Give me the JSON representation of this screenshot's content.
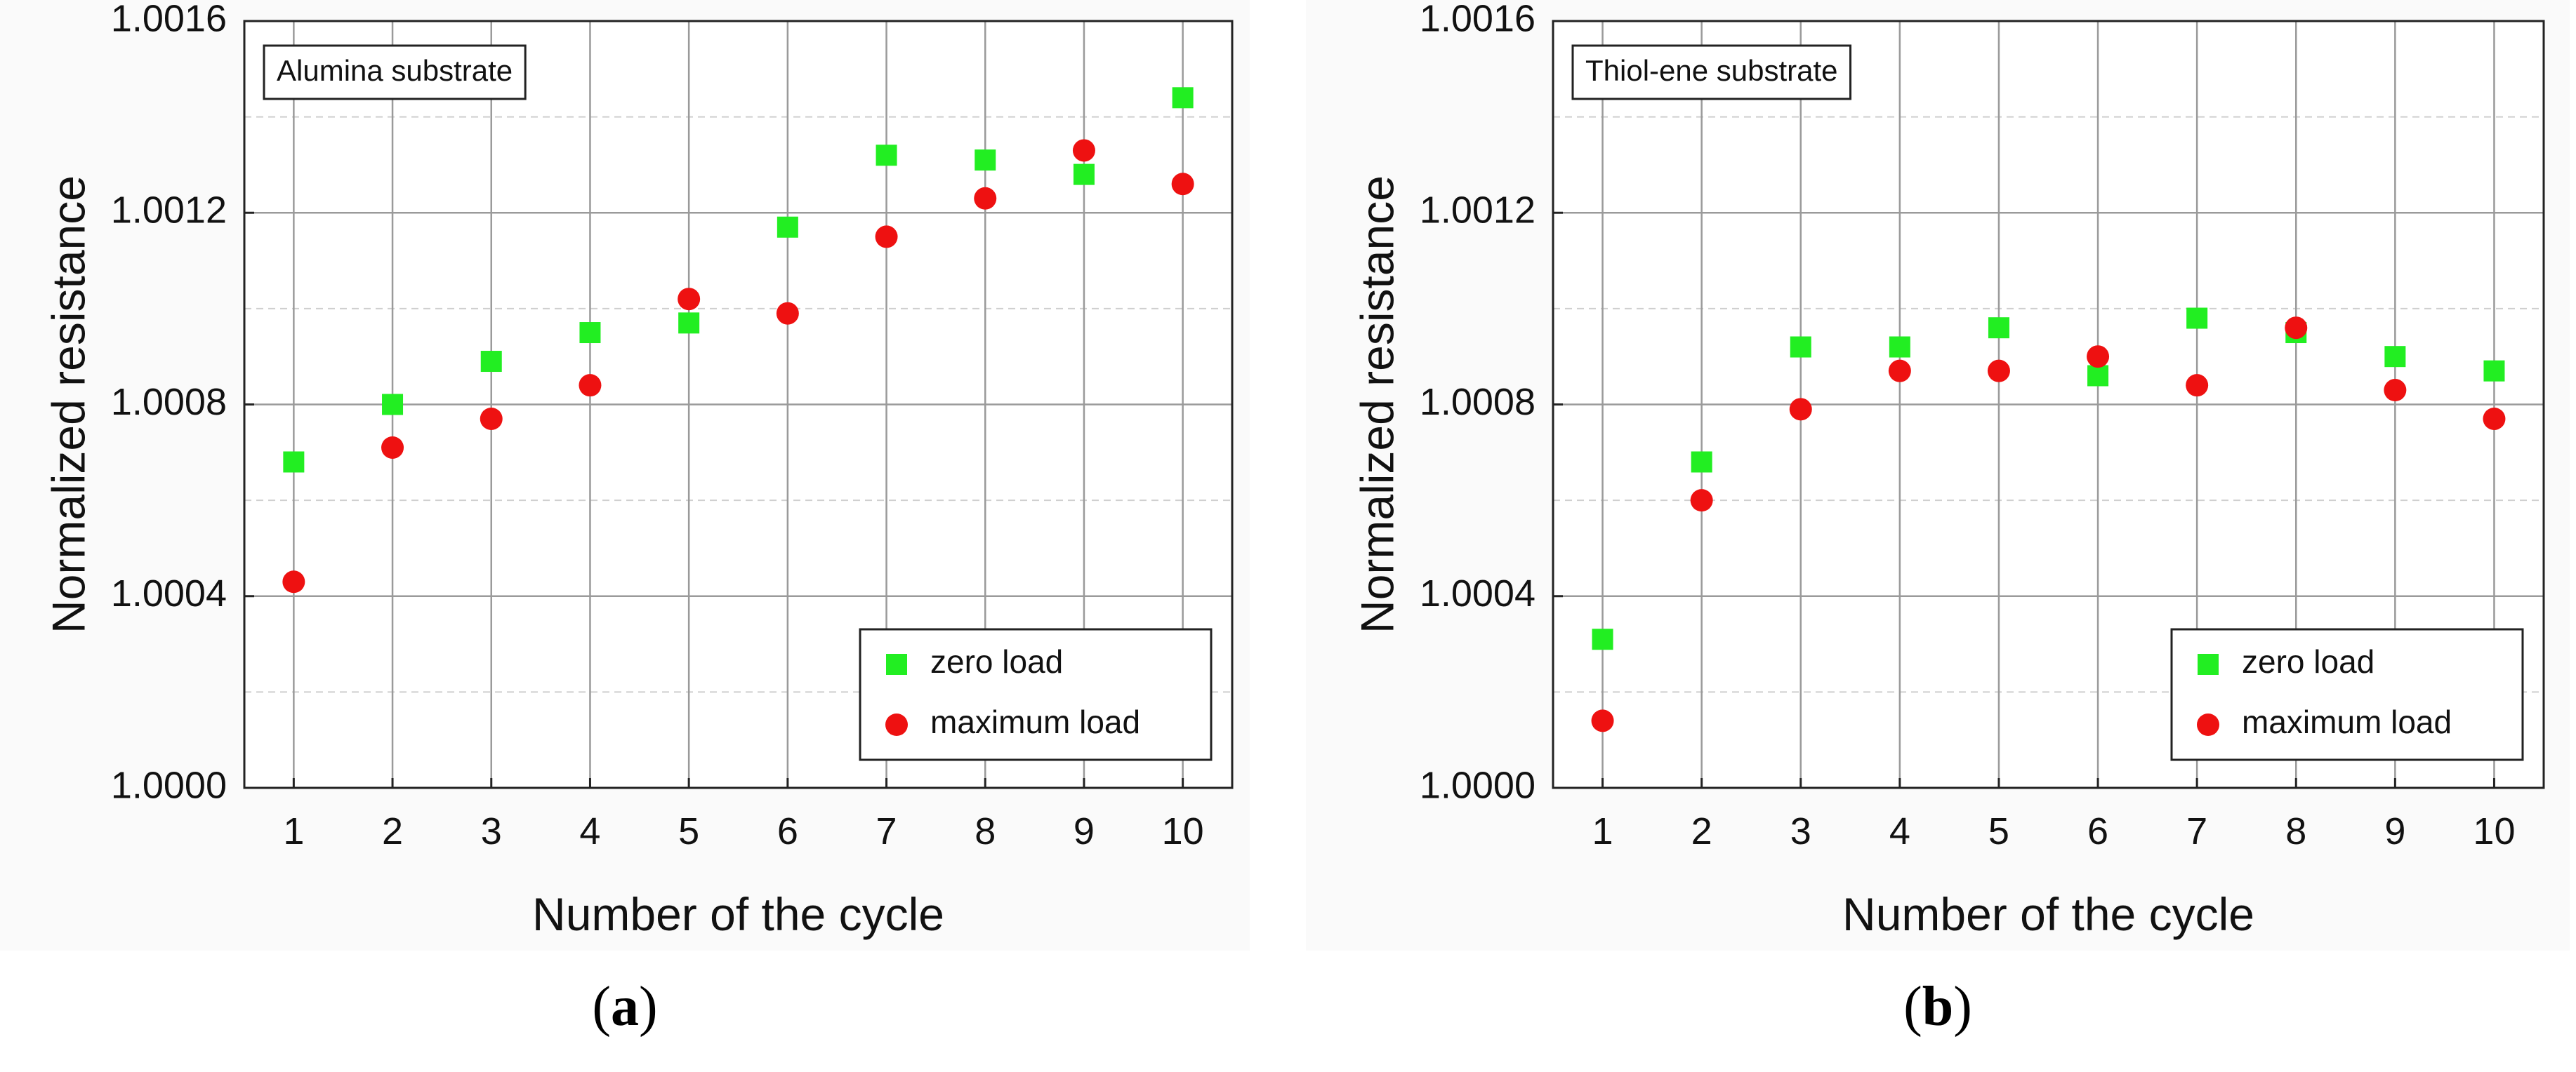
{
  "chart_data": [
    {
      "type": "scatter",
      "panel": "(a)",
      "panel_letter": "a",
      "title": "Alumina substrate",
      "xlabel": "Number of the cycle",
      "ylabel": "Normalized resistance",
      "xlim": [
        0.5,
        10.5
      ],
      "ylim": [
        1.0,
        1.0016
      ],
      "xticks": [
        "1",
        "2",
        "3",
        "4",
        "5",
        "6",
        "7",
        "8",
        "9",
        "10"
      ],
      "yticks": [
        "1.0000",
        "1.0004",
        "1.0008",
        "1.0012",
        "1.0016"
      ],
      "grid": true,
      "legend_position": "bottom-right",
      "x": [
        1,
        2,
        3,
        4,
        5,
        6,
        7,
        8,
        9,
        10
      ],
      "series": [
        {
          "name": "zero load",
          "marker": "square",
          "color": "#22ee22",
          "values": [
            1.00068,
            1.0008,
            1.00089,
            1.00095,
            1.00097,
            1.00117,
            1.00132,
            1.00131,
            1.00128,
            1.00144
          ]
        },
        {
          "name": "maximum load",
          "marker": "circle",
          "color": "#ee1111",
          "values": [
            1.00043,
            1.00071,
            1.00077,
            1.00084,
            1.00102,
            1.00099,
            1.00115,
            1.00123,
            1.00133,
            1.00126
          ]
        }
      ]
    },
    {
      "type": "scatter",
      "panel": "(b)",
      "panel_letter": "b",
      "title": "Thiol-ene substrate",
      "xlabel": "Number of the cycle",
      "ylabel": "Normalized resistance",
      "xlim": [
        0.5,
        10.5
      ],
      "ylim": [
        1.0,
        1.0016
      ],
      "xticks": [
        "1",
        "2",
        "3",
        "4",
        "5",
        "6",
        "7",
        "8",
        "9",
        "10"
      ],
      "yticks": [
        "1.0000",
        "1.0004",
        "1.0008",
        "1.0012",
        "1.0016"
      ],
      "grid": true,
      "legend_position": "bottom-right",
      "x": [
        1,
        2,
        3,
        4,
        5,
        6,
        7,
        8,
        9,
        10
      ],
      "series": [
        {
          "name": "zero load",
          "marker": "square",
          "color": "#22ee22",
          "values": [
            1.00031,
            1.00068,
            1.00092,
            1.00092,
            1.00096,
            1.00086,
            1.00098,
            1.00095,
            1.0009,
            1.00087
          ]
        },
        {
          "name": "maximum load",
          "marker": "circle",
          "color": "#ee1111",
          "values": [
            1.00014,
            1.0006,
            1.00079,
            1.00087,
            1.00087,
            1.0009,
            1.00084,
            1.00096,
            1.00083,
            1.00077
          ]
        }
      ]
    }
  ]
}
